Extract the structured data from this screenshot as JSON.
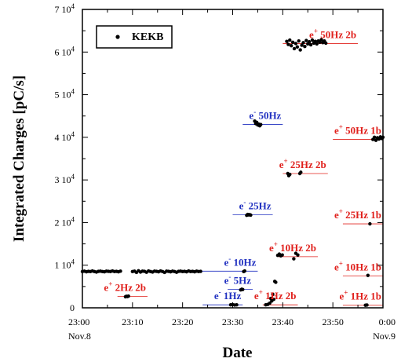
{
  "chart_data": {
    "type": "scatter",
    "title": "",
    "xlabel": "Date",
    "ylabel": "Integrated Charges [pC/s]",
    "xlim": [
      0,
      60
    ],
    "ylim": [
      0,
      70000
    ],
    "x_unit": "minutes after 23:00 Nov.8",
    "xticks": [
      {
        "value": 0,
        "label": "23:00",
        "sublabel": "Nov.8"
      },
      {
        "value": 10,
        "label": "23:10",
        "sublabel": ""
      },
      {
        "value": 20,
        "label": "23:20",
        "sublabel": ""
      },
      {
        "value": 30,
        "label": "23:30",
        "sublabel": ""
      },
      {
        "value": 40,
        "label": "23:40",
        "sublabel": ""
      },
      {
        "value": 50,
        "label": "23:50",
        "sublabel": ""
      },
      {
        "value": 60,
        "label": "0:00",
        "sublabel": "Nov.9"
      }
    ],
    "yticks": [
      {
        "value": 0,
        "mant": "0",
        "exp": ""
      },
      {
        "value": 10000,
        "mant": "1 10",
        "exp": "4"
      },
      {
        "value": 20000,
        "mant": "2 10",
        "exp": "4"
      },
      {
        "value": 30000,
        "mant": "3 10",
        "exp": "4"
      },
      {
        "value": 40000,
        "mant": "4 10",
        "exp": "4"
      },
      {
        "value": 50000,
        "mant": "5 10",
        "exp": "4"
      },
      {
        "value": 60000,
        "mant": "6 10",
        "exp": "4"
      },
      {
        "value": 70000,
        "mant": "7 10",
        "exp": "4"
      }
    ],
    "legend": {
      "label": "KEKB",
      "placement": "top-left"
    },
    "marker_color": "#000000",
    "colors": {
      "positron": "#e0201c",
      "electron": "#2030c0"
    },
    "modes": [
      {
        "particle": "+",
        "label": "2Hz 2b",
        "color": "#e0201c",
        "level": 2700,
        "x0": 7,
        "x1": 13
      },
      {
        "particle": "-",
        "label": "1Hz",
        "color": "#2030c0",
        "level": 700,
        "x0": 24,
        "x1": 32
      },
      {
        "particle": "-",
        "label": "5Hz",
        "color": "#2030c0",
        "level": 4300,
        "x0": 29,
        "x1": 34
      },
      {
        "particle": "-",
        "label": "10Hz",
        "color": "#2030c0",
        "level": 8600,
        "x0": 20,
        "x1": 35
      },
      {
        "particle": "-",
        "label": "25Hz",
        "color": "#2030c0",
        "level": 21800,
        "x0": 30,
        "x1": 38
      },
      {
        "particle": "-",
        "label": "50Hz",
        "color": "#2030c0",
        "level": 43000,
        "x0": 32,
        "x1": 40
      },
      {
        "particle": "+",
        "label": "1Hz 2b",
        "color": "#e0201c",
        "level": 700,
        "x0": 36,
        "x1": 43
      },
      {
        "particle": "+",
        "label": "10Hz 2b",
        "color": "#e0201c",
        "level": 12000,
        "x0": 39,
        "x1": 47
      },
      {
        "particle": "+",
        "label": "25Hz 2b",
        "color": "#e0201c",
        "level": 31500,
        "x0": 40,
        "x1": 49
      },
      {
        "particle": "+",
        "label": "50Hz 2b",
        "color": "#e0201c",
        "level": 62000,
        "x0": 40,
        "x1": 55
      },
      {
        "particle": "+",
        "label": "1Hz 1b",
        "color": "#e0201c",
        "level": 600,
        "x0": 52,
        "x1": 60
      },
      {
        "particle": "+",
        "label": "10Hz 1b",
        "color": "#e0201c",
        "level": 7500,
        "x0": 52,
        "x1": 60
      },
      {
        "particle": "+",
        "label": "25Hz 1b",
        "color": "#e0201c",
        "level": 19700,
        "x0": 52,
        "x1": 60
      },
      {
        "particle": "+",
        "label": "50Hz 1b",
        "color": "#e0201c",
        "level": 39500,
        "x0": 50,
        "x1": 60
      }
    ],
    "series": [
      {
        "name": "KEKB",
        "points": [
          [
            0.0,
            8500
          ],
          [
            0.4,
            8600
          ],
          [
            0.8,
            8450
          ],
          [
            1.2,
            8550
          ],
          [
            1.6,
            8500
          ],
          [
            2.0,
            8650
          ],
          [
            2.4,
            8500
          ],
          [
            2.8,
            8400
          ],
          [
            3.2,
            8550
          ],
          [
            3.6,
            8600
          ],
          [
            4.0,
            8500
          ],
          [
            4.4,
            8450
          ],
          [
            4.8,
            8600
          ],
          [
            5.2,
            8550
          ],
          [
            5.6,
            8500
          ],
          [
            6.0,
            8650
          ],
          [
            6.4,
            8500
          ],
          [
            6.8,
            8550
          ],
          [
            7.2,
            8450
          ],
          [
            7.6,
            8600
          ],
          [
            8.6,
            2600
          ],
          [
            8.8,
            2700
          ],
          [
            9.0,
            2650
          ],
          [
            9.2,
            2750
          ],
          [
            10.0,
            8500
          ],
          [
            10.4,
            8600
          ],
          [
            10.8,
            8300
          ],
          [
            11.2,
            8700
          ],
          [
            11.6,
            8400
          ],
          [
            12.0,
            8600
          ],
          [
            12.4,
            8550
          ],
          [
            12.8,
            8350
          ],
          [
            13.2,
            8650
          ],
          [
            13.6,
            8500
          ],
          [
            14.0,
            8400
          ],
          [
            14.4,
            8600
          ],
          [
            14.8,
            8550
          ],
          [
            15.2,
            8450
          ],
          [
            15.6,
            8650
          ],
          [
            16.0,
            8500
          ],
          [
            16.4,
            8300
          ],
          [
            16.8,
            8600
          ],
          [
            17.2,
            8550
          ],
          [
            17.6,
            8450
          ],
          [
            18.0,
            8600
          ],
          [
            18.4,
            8500
          ],
          [
            18.8,
            8350
          ],
          [
            19.2,
            8550
          ],
          [
            19.6,
            8600
          ],
          [
            20.0,
            8500
          ],
          [
            20.4,
            8550
          ],
          [
            20.8,
            8450
          ],
          [
            21.2,
            8650
          ],
          [
            21.6,
            8500
          ],
          [
            22.0,
            8550
          ],
          [
            22.4,
            8450
          ],
          [
            22.8,
            8600
          ],
          [
            23.2,
            8500
          ],
          [
            23.6,
            8550
          ],
          [
            29.6,
            700
          ],
          [
            30.0,
            750
          ],
          [
            30.4,
            650
          ],
          [
            30.8,
            700
          ],
          [
            31.6,
            4200
          ],
          [
            31.8,
            4350
          ],
          [
            32.0,
            4300
          ],
          [
            32.2,
            8500
          ],
          [
            32.4,
            8650
          ],
          [
            32.8,
            21700
          ],
          [
            33.0,
            21900
          ],
          [
            33.2,
            21800
          ],
          [
            33.4,
            21850
          ],
          [
            33.6,
            21750
          ],
          [
            34.4,
            43800
          ],
          [
            34.6,
            43200
          ],
          [
            34.8,
            43500
          ],
          [
            35.0,
            42900
          ],
          [
            35.2,
            43100
          ],
          [
            35.4,
            42700
          ],
          [
            35.6,
            43000
          ],
          [
            36.6,
            700
          ],
          [
            37.0,
            800
          ],
          [
            37.4,
            1100
          ],
          [
            37.6,
            2200
          ],
          [
            37.8,
            1600
          ],
          [
            38.0,
            3200
          ],
          [
            38.2,
            2000
          ],
          [
            38.4,
            6200
          ],
          [
            38.6,
            6000
          ],
          [
            39.0,
            12300
          ],
          [
            39.3,
            12600
          ],
          [
            39.6,
            12200
          ],
          [
            39.9,
            12400
          ],
          [
            41.0,
            31500
          ],
          [
            41.2,
            31000
          ],
          [
            41.4,
            31300
          ],
          [
            42.2,
            11500
          ],
          [
            42.6,
            12800
          ],
          [
            43.0,
            12400
          ],
          [
            43.4,
            31500
          ],
          [
            43.6,
            31800
          ],
          [
            40.8,
            62500
          ],
          [
            41.1,
            61800
          ],
          [
            41.4,
            62800
          ],
          [
            41.7,
            61500
          ],
          [
            42.0,
            62300
          ],
          [
            42.3,
            60800
          ],
          [
            42.6,
            62000
          ],
          [
            42.9,
            61200
          ],
          [
            43.2,
            62600
          ],
          [
            43.5,
            60500
          ],
          [
            43.8,
            61600
          ],
          [
            44.1,
            62200
          ],
          [
            44.4,
            61300
          ],
          [
            44.7,
            62700
          ],
          [
            45.0,
            61900
          ],
          [
            45.3,
            62400
          ],
          [
            45.6,
            61700
          ],
          [
            45.9,
            62800
          ],
          [
            46.2,
            62100
          ],
          [
            46.5,
            62500
          ],
          [
            46.8,
            61900
          ],
          [
            47.1,
            62600
          ],
          [
            47.4,
            62300
          ],
          [
            47.7,
            62900
          ],
          [
            48.0,
            62200
          ],
          [
            48.3,
            62600
          ],
          [
            48.6,
            62100
          ],
          [
            56.5,
            600
          ],
          [
            56.8,
            650
          ],
          [
            57.0,
            7600
          ],
          [
            57.4,
            19700
          ],
          [
            58.0,
            39500
          ],
          [
            58.3,
            40000
          ],
          [
            58.6,
            39300
          ],
          [
            58.9,
            39900
          ],
          [
            59.2,
            39600
          ],
          [
            59.5,
            40100
          ],
          [
            59.8,
            39700
          ],
          [
            60.0,
            40000
          ]
        ]
      }
    ]
  }
}
